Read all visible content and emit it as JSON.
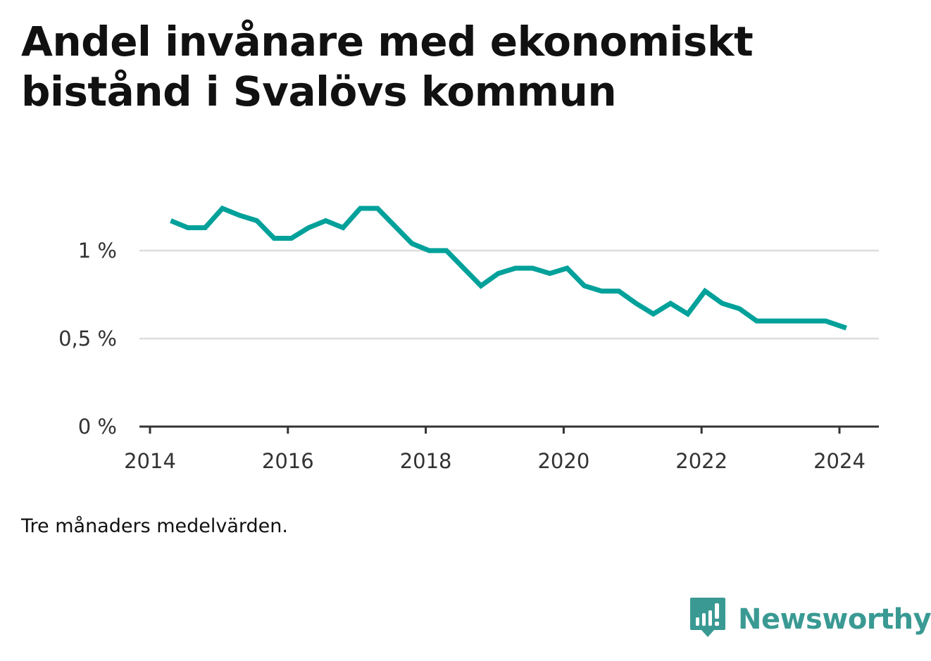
{
  "title": "Andel invånare med ekonomiskt bistånd i Svalövs kommun",
  "note": "Tre månaders medelvärden.",
  "brand": {
    "name": "Newsworthy",
    "icon": "bar-chart-speech-bubble-icon",
    "color": "#3a9a93"
  },
  "colors": {
    "line": "#00a19a",
    "grid": "#dddddd",
    "axis": "#333333"
  },
  "chart_data": {
    "type": "line",
    "x_unit": "year",
    "y_unit": "%",
    "ylim": [
      0,
      1.3
    ],
    "xlim": [
      2014,
      2024.6
    ],
    "y_ticks": [
      {
        "value": 0,
        "label": "0 %"
      },
      {
        "value": 0.5,
        "label": "0,5 %"
      },
      {
        "value": 1,
        "label": "1 %"
      }
    ],
    "x_ticks": [
      {
        "value": 2014,
        "label": "2014"
      },
      {
        "value": 2016,
        "label": "2016"
      },
      {
        "value": 2018,
        "label": "2018"
      },
      {
        "value": 2020,
        "label": "2020"
      },
      {
        "value": 2022,
        "label": "2022"
      },
      {
        "value": 2024,
        "label": "2024"
      }
    ],
    "grid": true,
    "series": [
      {
        "x": [
          2014.3,
          2014.55,
          2014.8,
          2015.05,
          2015.3,
          2015.55,
          2015.8,
          2016.05,
          2016.3,
          2016.55,
          2016.8,
          2017.05,
          2017.3,
          2017.55,
          2017.8,
          2018.05,
          2018.3,
          2018.55,
          2018.8,
          2019.05,
          2019.3,
          2019.55,
          2019.8,
          2020.05,
          2020.3,
          2020.55,
          2020.8,
          2021.05,
          2021.3,
          2021.55,
          2021.8,
          2022.05,
          2022.3,
          2022.55,
          2022.8,
          2023.05,
          2023.3,
          2023.55,
          2023.8,
          2024.1
        ],
        "y": [
          1.17,
          1.13,
          1.13,
          1.24,
          1.2,
          1.17,
          1.07,
          1.07,
          1.13,
          1.17,
          1.13,
          1.24,
          1.24,
          1.14,
          1.04,
          1.0,
          1.0,
          0.9,
          0.8,
          0.87,
          0.9,
          0.9,
          0.87,
          0.9,
          0.8,
          0.77,
          0.77,
          0.7,
          0.64,
          0.7,
          0.64,
          0.77,
          0.7,
          0.67,
          0.6,
          0.6,
          0.6,
          0.6,
          0.6,
          0.56
        ]
      }
    ]
  }
}
